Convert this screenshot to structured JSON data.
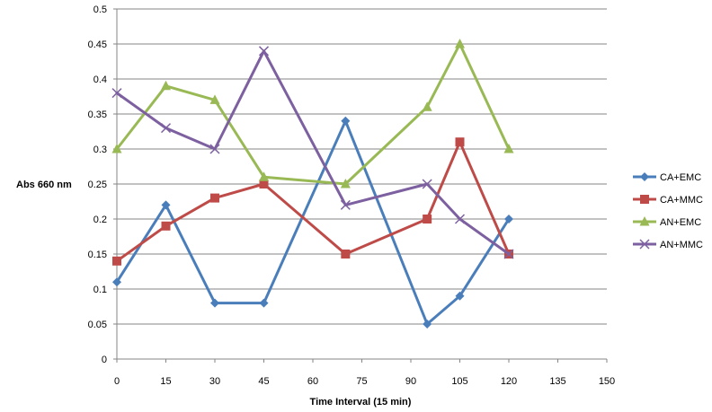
{
  "chart_data": {
    "type": "line",
    "title": "",
    "xlabel": "Time Interval (15 min)",
    "ylabel": "Abs 660 nm",
    "xlim": [
      0,
      150
    ],
    "ylim": [
      0,
      0.5
    ],
    "xticks": [
      "0",
      "15",
      "30",
      "45",
      "60",
      "75",
      "90",
      "105",
      "120",
      "135",
      "150"
    ],
    "yticks": [
      "0",
      "0.05",
      "0.1",
      "0.15",
      "0.2",
      "0.25",
      "0.3",
      "0.35",
      "0.4",
      "0.45",
      "0.5"
    ],
    "grid": true,
    "legend_position": "right",
    "series": [
      {
        "name": "CA+EMC",
        "color": "#4a7ebb",
        "marker": "diamond",
        "x": [
          0,
          15,
          30,
          45,
          70,
          95,
          105,
          120
        ],
        "y": [
          0.11,
          0.22,
          0.08,
          0.08,
          0.34,
          0.05,
          0.09,
          0.2
        ]
      },
      {
        "name": "CA+MMC",
        "color": "#be4b48",
        "marker": "square",
        "x": [
          0,
          15,
          30,
          45,
          70,
          95,
          105,
          120
        ],
        "y": [
          0.14,
          0.19,
          0.23,
          0.25,
          0.15,
          0.2,
          0.31,
          0.15
        ]
      },
      {
        "name": "AN+EMC",
        "color": "#98b954",
        "marker": "triangle",
        "x": [
          0,
          15,
          30,
          45,
          70,
          95,
          105,
          120
        ],
        "y": [
          0.3,
          0.39,
          0.37,
          0.26,
          0.25,
          0.36,
          0.45,
          0.3
        ]
      },
      {
        "name": "AN+MMC",
        "color": "#7d60a0",
        "marker": "x",
        "x": [
          0,
          15,
          30,
          45,
          70,
          95,
          105,
          120
        ],
        "y": [
          0.38,
          0.33,
          0.3,
          0.44,
          0.22,
          0.25,
          0.2,
          0.15
        ]
      }
    ]
  }
}
